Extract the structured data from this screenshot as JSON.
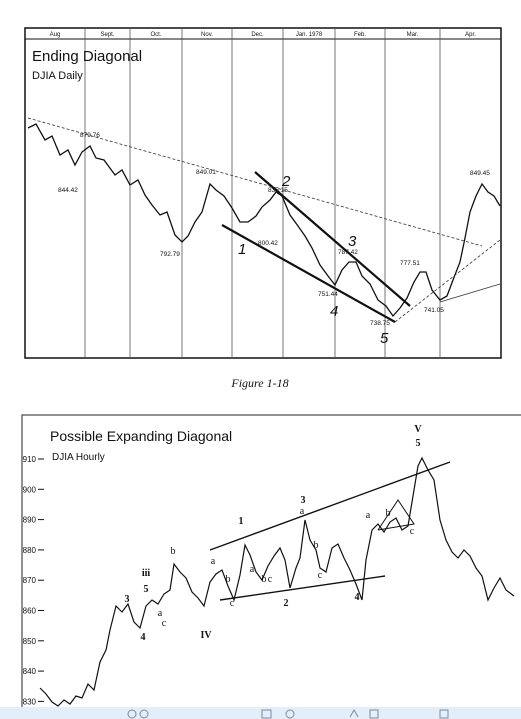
{
  "figure_1": {
    "months": [
      "Aug",
      "Sept.",
      "Oct.",
      "Nov.",
      "Dec.",
      "Jan. 1978",
      "Feb.",
      "Mar.",
      "Apr."
    ],
    "title": "Ending Diagonal",
    "subtitle": "DJIA Daily",
    "price_labels": [
      "879.76",
      "844.42",
      "849.01",
      "792.79",
      "835.15",
      "800.42",
      "787.42",
      "751.44",
      "738.75",
      "777.51",
      "741.05",
      "849.45"
    ],
    "wave_labels": [
      "1",
      "2",
      "3",
      "4",
      "5"
    ]
  },
  "caption": "Figure 1-18",
  "figure_2": {
    "title": "Possible Expanding Diagonal",
    "subtitle": "DJIA Hourly",
    "y_labels": [
      "910",
      "900",
      "890",
      "880",
      "870",
      "860",
      "850",
      "840",
      "830"
    ],
    "wave_labels": [
      "3",
      "4",
      "iii",
      "5",
      "a",
      "b",
      "c",
      "IV",
      "a",
      "b",
      "c",
      "1",
      "a",
      "b",
      "c",
      "2",
      "3",
      "a",
      "b",
      "c",
      "4",
      "a",
      "b",
      "c",
      "V",
      "5"
    ]
  }
}
